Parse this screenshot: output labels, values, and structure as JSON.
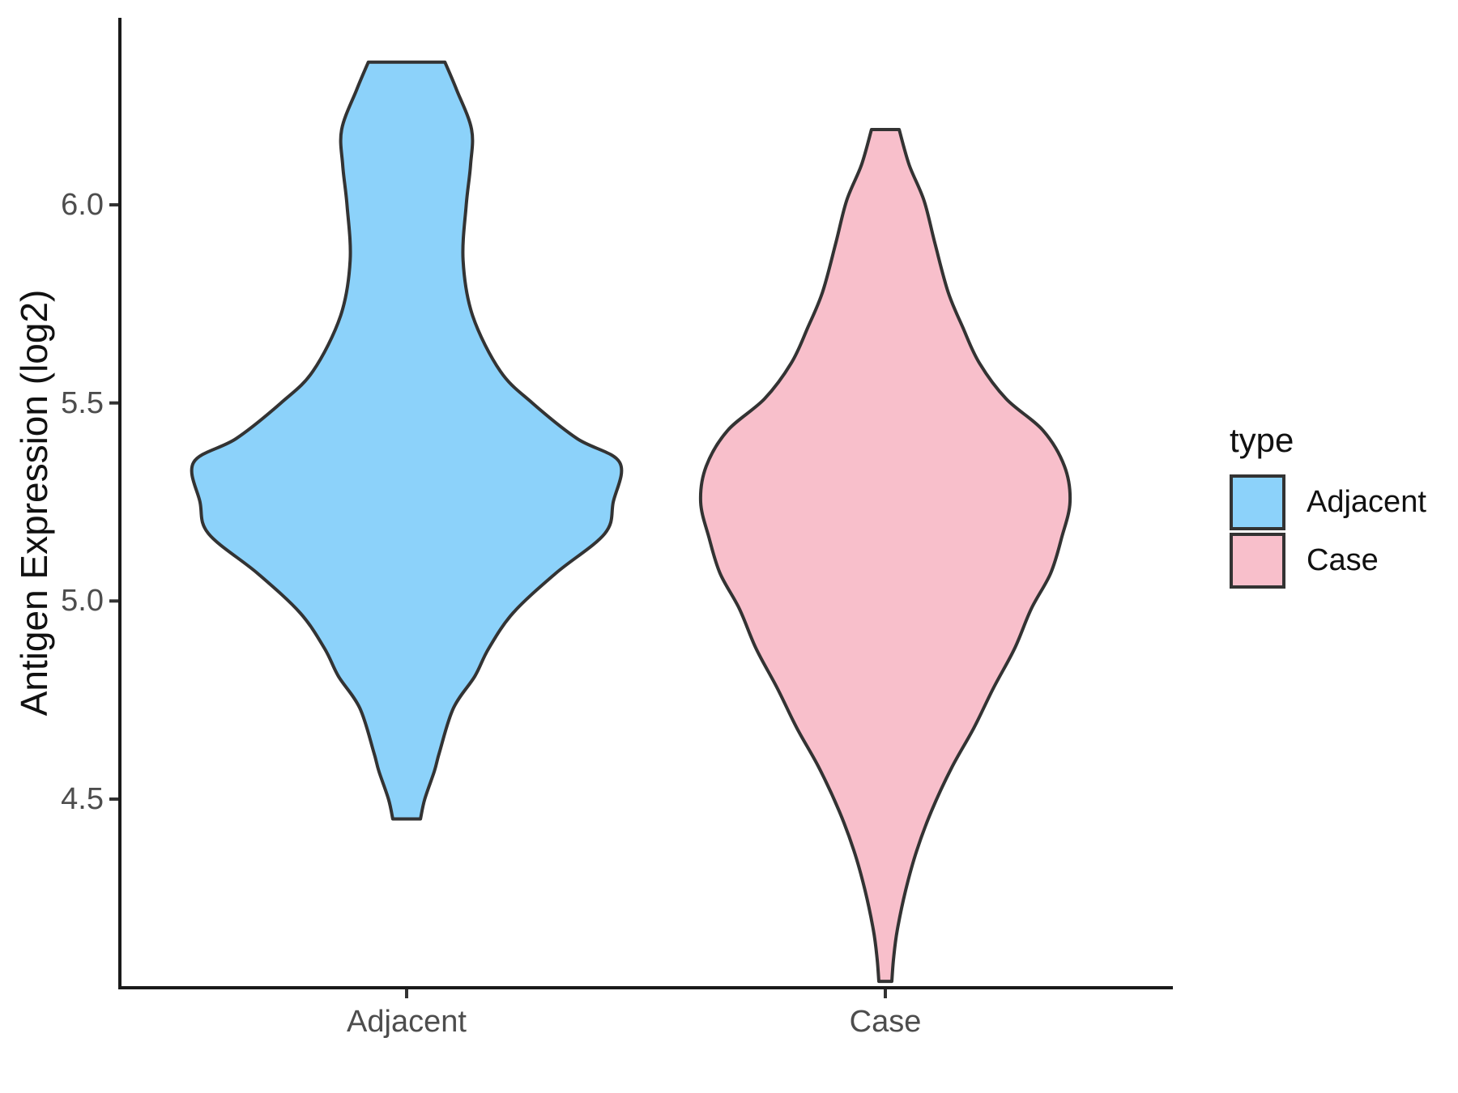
{
  "figure": {
    "background": "#ffffff",
    "axis_color": "#1a1a1a",
    "tick_text_color": "#4d4d4d",
    "y_axis": {
      "title": "Antigen Expression (log2)",
      "tick_labels": [
        "6.0",
        "5.5",
        "5.0",
        "4.5"
      ]
    },
    "x_axis": {
      "tick_labels": [
        "Adjacent",
        "Case"
      ]
    },
    "legend": {
      "title": "type",
      "entries": [
        {
          "label": "Adjacent",
          "color": "#8CD2FA"
        },
        {
          "label": "Case",
          "color": "#F8BFCB"
        }
      ]
    }
  },
  "chart_data": {
    "type": "violin",
    "title": "",
    "xlabel": "",
    "ylabel": "Antigen Expression (log2)",
    "categories": [
      "Adjacent",
      "Case"
    ],
    "y_ticks": [
      4.5,
      5.0,
      5.5,
      6.0
    ],
    "ylim": [
      4.02,
      6.47
    ],
    "grid": false,
    "legend_position": "right",
    "legend_title": "type",
    "outline_color": "#333333",
    "series": [
      {
        "name": "Adjacent",
        "fill": "#8CD2FA",
        "min": 4.45,
        "max": 6.36,
        "peak_density_at": 5.35,
        "density_profile": [
          [
            6.36,
            0.18
          ],
          [
            6.29,
            0.235
          ],
          [
            6.19,
            0.305
          ],
          [
            6.1,
            0.3
          ],
          [
            6.0,
            0.28
          ],
          [
            5.86,
            0.265
          ],
          [
            5.72,
            0.31
          ],
          [
            5.58,
            0.44
          ],
          [
            5.5,
            0.59
          ],
          [
            5.41,
            0.8
          ],
          [
            5.35,
            1.0
          ],
          [
            5.25,
            0.97
          ],
          [
            5.17,
            0.93
          ],
          [
            5.07,
            0.7
          ],
          [
            4.97,
            0.5
          ],
          [
            4.88,
            0.385
          ],
          [
            4.81,
            0.32
          ],
          [
            4.73,
            0.22
          ],
          [
            4.62,
            0.155
          ],
          [
            4.57,
            0.13
          ],
          [
            4.5,
            0.085
          ],
          [
            4.45,
            0.065
          ]
        ]
      },
      {
        "name": "Case",
        "fill": "#F8BFCB",
        "min": 4.04,
        "max": 6.19,
        "peak_density_at": 5.25,
        "density_profile": [
          [
            6.19,
            0.075
          ],
          [
            6.1,
            0.13
          ],
          [
            6.01,
            0.21
          ],
          [
            5.9,
            0.27
          ],
          [
            5.78,
            0.34
          ],
          [
            5.69,
            0.42
          ],
          [
            5.6,
            0.51
          ],
          [
            5.51,
            0.655
          ],
          [
            5.43,
            0.855
          ],
          [
            5.34,
            0.97
          ],
          [
            5.25,
            1.0
          ],
          [
            5.16,
            0.955
          ],
          [
            5.07,
            0.895
          ],
          [
            4.98,
            0.79
          ],
          [
            4.88,
            0.7
          ],
          [
            4.78,
            0.585
          ],
          [
            4.68,
            0.48
          ],
          [
            4.58,
            0.36
          ],
          [
            4.47,
            0.25
          ],
          [
            4.37,
            0.17
          ],
          [
            4.27,
            0.11
          ],
          [
            4.17,
            0.065
          ],
          [
            4.1,
            0.045
          ],
          [
            4.04,
            0.035
          ]
        ]
      }
    ]
  }
}
